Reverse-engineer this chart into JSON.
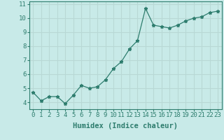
{
  "x": [
    0,
    1,
    2,
    3,
    4,
    5,
    6,
    7,
    8,
    9,
    10,
    11,
    12,
    13,
    14,
    15,
    16,
    17,
    18,
    19,
    20,
    21,
    22,
    23
  ],
  "y": [
    4.7,
    4.1,
    4.4,
    4.4,
    3.9,
    4.5,
    5.2,
    5.0,
    5.1,
    5.6,
    6.4,
    6.9,
    7.8,
    8.4,
    10.7,
    9.5,
    9.4,
    9.3,
    9.5,
    9.8,
    10.0,
    10.1,
    10.4,
    10.5
  ],
  "xlabel": "Humidex (Indice chaleur)",
  "ylim": [
    3.5,
    11.2
  ],
  "xlim": [
    -0.5,
    23.5
  ],
  "yticks": [
    4,
    5,
    6,
    7,
    8,
    9,
    10,
    11
  ],
  "xticks": [
    0,
    1,
    2,
    3,
    4,
    5,
    6,
    7,
    8,
    9,
    10,
    11,
    12,
    13,
    14,
    15,
    16,
    17,
    18,
    19,
    20,
    21,
    22,
    23
  ],
  "line_color": "#2e7d6e",
  "marker": "*",
  "bg_color": "#c8eae8",
  "grid_color": "#b8d8d5",
  "axis_color": "#2e7d6e",
  "tick_label_color": "#2e7d6e",
  "xlabel_color": "#2e7d6e",
  "font_size": 6.5,
  "xlabel_fontsize": 7.5
}
